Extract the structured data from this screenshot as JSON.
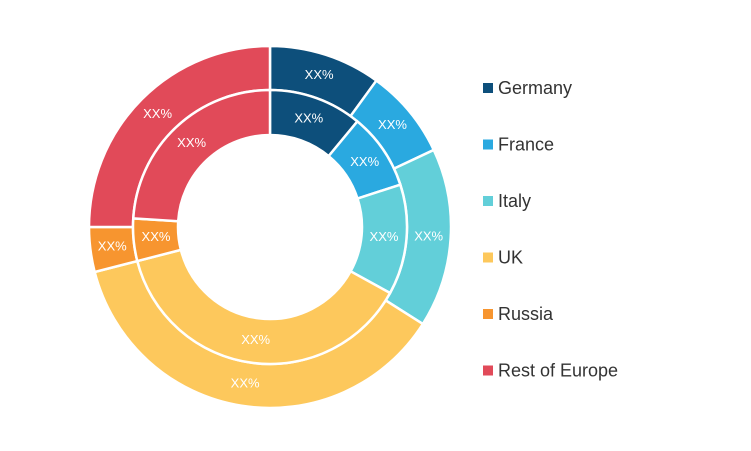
{
  "chart_data": {
    "type": "donut",
    "categories": [
      "Germany",
      "France",
      "Italy",
      "UK",
      "Russia",
      "Rest of Europe"
    ],
    "colors": [
      "#0d4f7b",
      "#2aa9e0",
      "#62cfd9",
      "#fdc85c",
      "#f7952f",
      "#e14a59"
    ],
    "series": [
      {
        "values": [
          10,
          8,
          16,
          37,
          4,
          25
        ],
        "value_labels": [
          "XX%",
          "XX%",
          "XX%",
          "XX%",
          "XX%",
          "XX%"
        ]
      },
      {
        "values": [
          11,
          9,
          13,
          38,
          5,
          24
        ],
        "value_labels": [
          "XX%",
          "XX%",
          "XX%",
          "XX%",
          "XX%",
          "XX%"
        ]
      }
    ]
  }
}
